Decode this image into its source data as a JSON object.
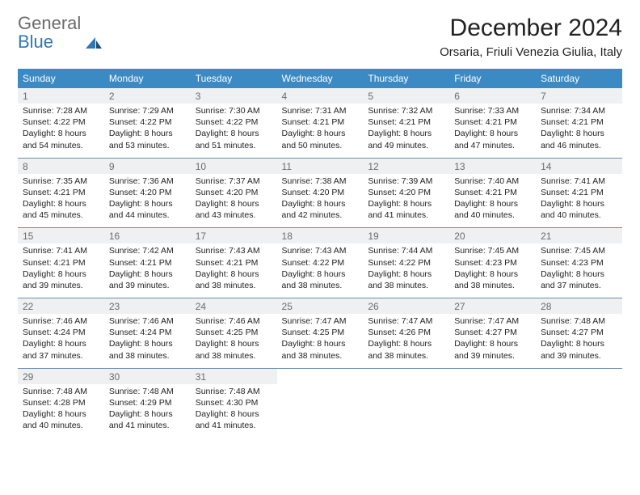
{
  "logo": {
    "general": "General",
    "blue": "Blue"
  },
  "title": "December 2024",
  "location": "Orsaria, Friuli Venezia Giulia, Italy",
  "colors": {
    "header_bg": "#3b8ac4",
    "header_text": "#ffffff",
    "daynum_bg": "#eef0f1",
    "daynum_text": "#6b6b6b",
    "rule": "#6b8fb0",
    "logo_gray": "#6b6b6b",
    "logo_blue": "#2f78b7"
  },
  "dow": [
    "Sunday",
    "Monday",
    "Tuesday",
    "Wednesday",
    "Thursday",
    "Friday",
    "Saturday"
  ],
  "weeks": [
    [
      {
        "n": "1",
        "sr": "Sunrise: 7:28 AM",
        "ss": "Sunset: 4:22 PM",
        "d1": "Daylight: 8 hours",
        "d2": "and 54 minutes."
      },
      {
        "n": "2",
        "sr": "Sunrise: 7:29 AM",
        "ss": "Sunset: 4:22 PM",
        "d1": "Daylight: 8 hours",
        "d2": "and 53 minutes."
      },
      {
        "n": "3",
        "sr": "Sunrise: 7:30 AM",
        "ss": "Sunset: 4:22 PM",
        "d1": "Daylight: 8 hours",
        "d2": "and 51 minutes."
      },
      {
        "n": "4",
        "sr": "Sunrise: 7:31 AM",
        "ss": "Sunset: 4:21 PM",
        "d1": "Daylight: 8 hours",
        "d2": "and 50 minutes."
      },
      {
        "n": "5",
        "sr": "Sunrise: 7:32 AM",
        "ss": "Sunset: 4:21 PM",
        "d1": "Daylight: 8 hours",
        "d2": "and 49 minutes."
      },
      {
        "n": "6",
        "sr": "Sunrise: 7:33 AM",
        "ss": "Sunset: 4:21 PM",
        "d1": "Daylight: 8 hours",
        "d2": "and 47 minutes."
      },
      {
        "n": "7",
        "sr": "Sunrise: 7:34 AM",
        "ss": "Sunset: 4:21 PM",
        "d1": "Daylight: 8 hours",
        "d2": "and 46 minutes."
      }
    ],
    [
      {
        "n": "8",
        "sr": "Sunrise: 7:35 AM",
        "ss": "Sunset: 4:21 PM",
        "d1": "Daylight: 8 hours",
        "d2": "and 45 minutes."
      },
      {
        "n": "9",
        "sr": "Sunrise: 7:36 AM",
        "ss": "Sunset: 4:20 PM",
        "d1": "Daylight: 8 hours",
        "d2": "and 44 minutes."
      },
      {
        "n": "10",
        "sr": "Sunrise: 7:37 AM",
        "ss": "Sunset: 4:20 PM",
        "d1": "Daylight: 8 hours",
        "d2": "and 43 minutes."
      },
      {
        "n": "11",
        "sr": "Sunrise: 7:38 AM",
        "ss": "Sunset: 4:20 PM",
        "d1": "Daylight: 8 hours",
        "d2": "and 42 minutes."
      },
      {
        "n": "12",
        "sr": "Sunrise: 7:39 AM",
        "ss": "Sunset: 4:20 PM",
        "d1": "Daylight: 8 hours",
        "d2": "and 41 minutes."
      },
      {
        "n": "13",
        "sr": "Sunrise: 7:40 AM",
        "ss": "Sunset: 4:21 PM",
        "d1": "Daylight: 8 hours",
        "d2": "and 40 minutes."
      },
      {
        "n": "14",
        "sr": "Sunrise: 7:41 AM",
        "ss": "Sunset: 4:21 PM",
        "d1": "Daylight: 8 hours",
        "d2": "and 40 minutes."
      }
    ],
    [
      {
        "n": "15",
        "sr": "Sunrise: 7:41 AM",
        "ss": "Sunset: 4:21 PM",
        "d1": "Daylight: 8 hours",
        "d2": "and 39 minutes."
      },
      {
        "n": "16",
        "sr": "Sunrise: 7:42 AM",
        "ss": "Sunset: 4:21 PM",
        "d1": "Daylight: 8 hours",
        "d2": "and 39 minutes."
      },
      {
        "n": "17",
        "sr": "Sunrise: 7:43 AM",
        "ss": "Sunset: 4:21 PM",
        "d1": "Daylight: 8 hours",
        "d2": "and 38 minutes."
      },
      {
        "n": "18",
        "sr": "Sunrise: 7:43 AM",
        "ss": "Sunset: 4:22 PM",
        "d1": "Daylight: 8 hours",
        "d2": "and 38 minutes."
      },
      {
        "n": "19",
        "sr": "Sunrise: 7:44 AM",
        "ss": "Sunset: 4:22 PM",
        "d1": "Daylight: 8 hours",
        "d2": "and 38 minutes."
      },
      {
        "n": "20",
        "sr": "Sunrise: 7:45 AM",
        "ss": "Sunset: 4:23 PM",
        "d1": "Daylight: 8 hours",
        "d2": "and 38 minutes."
      },
      {
        "n": "21",
        "sr": "Sunrise: 7:45 AM",
        "ss": "Sunset: 4:23 PM",
        "d1": "Daylight: 8 hours",
        "d2": "and 37 minutes."
      }
    ],
    [
      {
        "n": "22",
        "sr": "Sunrise: 7:46 AM",
        "ss": "Sunset: 4:24 PM",
        "d1": "Daylight: 8 hours",
        "d2": "and 37 minutes."
      },
      {
        "n": "23",
        "sr": "Sunrise: 7:46 AM",
        "ss": "Sunset: 4:24 PM",
        "d1": "Daylight: 8 hours",
        "d2": "and 38 minutes."
      },
      {
        "n": "24",
        "sr": "Sunrise: 7:46 AM",
        "ss": "Sunset: 4:25 PM",
        "d1": "Daylight: 8 hours",
        "d2": "and 38 minutes."
      },
      {
        "n": "25",
        "sr": "Sunrise: 7:47 AM",
        "ss": "Sunset: 4:25 PM",
        "d1": "Daylight: 8 hours",
        "d2": "and 38 minutes."
      },
      {
        "n": "26",
        "sr": "Sunrise: 7:47 AM",
        "ss": "Sunset: 4:26 PM",
        "d1": "Daylight: 8 hours",
        "d2": "and 38 minutes."
      },
      {
        "n": "27",
        "sr": "Sunrise: 7:47 AM",
        "ss": "Sunset: 4:27 PM",
        "d1": "Daylight: 8 hours",
        "d2": "and 39 minutes."
      },
      {
        "n": "28",
        "sr": "Sunrise: 7:48 AM",
        "ss": "Sunset: 4:27 PM",
        "d1": "Daylight: 8 hours",
        "d2": "and 39 minutes."
      }
    ],
    [
      {
        "n": "29",
        "sr": "Sunrise: 7:48 AM",
        "ss": "Sunset: 4:28 PM",
        "d1": "Daylight: 8 hours",
        "d2": "and 40 minutes."
      },
      {
        "n": "30",
        "sr": "Sunrise: 7:48 AM",
        "ss": "Sunset: 4:29 PM",
        "d1": "Daylight: 8 hours",
        "d2": "and 41 minutes."
      },
      {
        "n": "31",
        "sr": "Sunrise: 7:48 AM",
        "ss": "Sunset: 4:30 PM",
        "d1": "Daylight: 8 hours",
        "d2": "and 41 minutes."
      },
      null,
      null,
      null,
      null
    ]
  ]
}
